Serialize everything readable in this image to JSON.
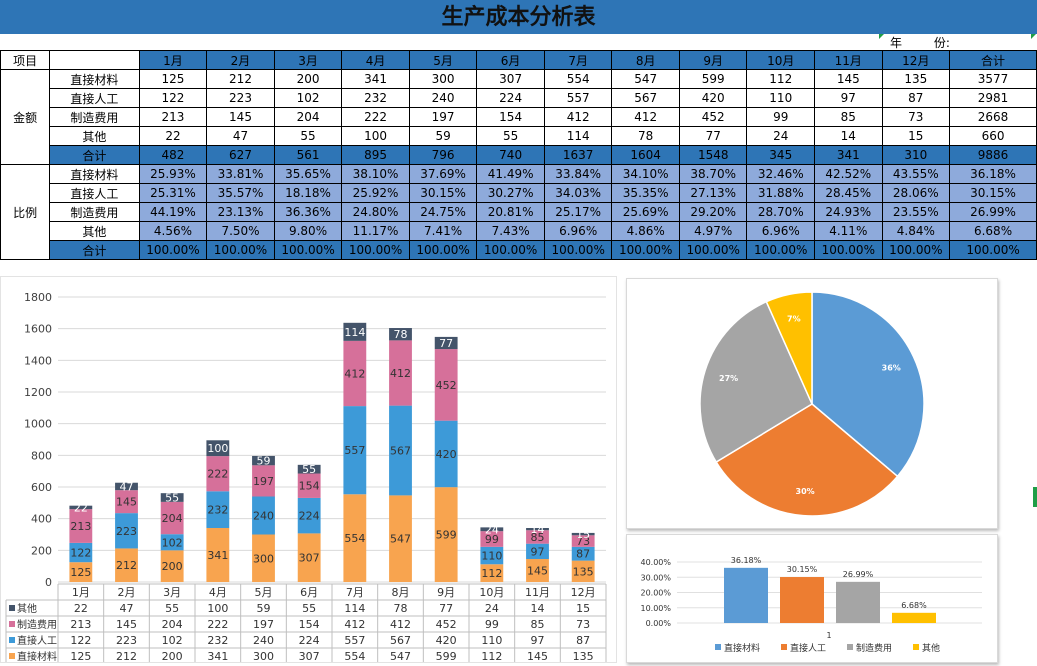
{
  "title": "生产成本分析表",
  "year_label": "年",
  "month_label": "份:",
  "table": {
    "corner": "项目",
    "months": [
      "1月",
      "2月",
      "3月",
      "4月",
      "5月",
      "6月",
      "7月",
      "8月",
      "9月",
      "10月",
      "11月",
      "12月"
    ],
    "total_header": "合计",
    "amount_group": "金额",
    "ratio_group": "比例",
    "amount_rows": [
      {
        "label": "直接材料",
        "values": [
          "125",
          "212",
          "200",
          "341",
          "300",
          "307",
          "554",
          "547",
          "599",
          "112",
          "145",
          "135"
        ],
        "total": "3577"
      },
      {
        "label": "直接人工",
        "values": [
          "122",
          "223",
          "102",
          "232",
          "240",
          "224",
          "557",
          "567",
          "420",
          "110",
          "97",
          "87"
        ],
        "total": "2981"
      },
      {
        "label": "制造费用",
        "values": [
          "213",
          "145",
          "204",
          "222",
          "197",
          "154",
          "412",
          "412",
          "452",
          "99",
          "85",
          "73"
        ],
        "total": "2668"
      },
      {
        "label": "其他",
        "values": [
          "22",
          "47",
          "55",
          "100",
          "59",
          "55",
          "114",
          "78",
          "77",
          "24",
          "14",
          "15"
        ],
        "total": "660"
      }
    ],
    "amount_total": {
      "label": "合计",
      "values": [
        "482",
        "627",
        "561",
        "895",
        "796",
        "740",
        "1637",
        "1604",
        "1548",
        "345",
        "341",
        "310"
      ],
      "total": "9886"
    },
    "ratio_rows": [
      {
        "label": "直接材料",
        "values": [
          "25.93%",
          "33.81%",
          "35.65%",
          "38.10%",
          "37.69%",
          "41.49%",
          "33.84%",
          "34.10%",
          "38.70%",
          "32.46%",
          "42.52%",
          "43.55%"
        ],
        "total": "36.18%"
      },
      {
        "label": "直接人工",
        "values": [
          "25.31%",
          "35.57%",
          "18.18%",
          "25.92%",
          "30.15%",
          "30.27%",
          "34.03%",
          "35.35%",
          "27.13%",
          "31.88%",
          "28.45%",
          "28.06%"
        ],
        "total": "30.15%"
      },
      {
        "label": "制造费用",
        "values": [
          "44.19%",
          "23.13%",
          "36.36%",
          "24.80%",
          "24.75%",
          "20.81%",
          "25.17%",
          "25.69%",
          "29.20%",
          "28.70%",
          "24.93%",
          "23.55%"
        ],
        "total": "26.99%"
      },
      {
        "label": "其他",
        "values": [
          "4.56%",
          "7.50%",
          "9.80%",
          "11.17%",
          "7.41%",
          "7.43%",
          "6.96%",
          "4.86%",
          "4.97%",
          "6.96%",
          "4.11%",
          "4.84%"
        ],
        "total": "6.68%"
      }
    ],
    "ratio_total": {
      "label": "合计",
      "values": [
        "100.00%",
        "100.00%",
        "100.00%",
        "100.00%",
        "100.00%",
        "100.00%",
        "100.00%",
        "100.00%",
        "100.00%",
        "100.00%",
        "100.00%",
        "100.00%"
      ],
      "total": "100.00%"
    }
  },
  "chart_data": [
    {
      "type": "bar",
      "stacked": true,
      "categories": [
        "1月",
        "2月",
        "3月",
        "4月",
        "5月",
        "6月",
        "7月",
        "8月",
        "9月",
        "10月",
        "11月",
        "12月"
      ],
      "ylim": [
        0,
        1800
      ],
      "yticks": [
        "0",
        "200",
        "400",
        "600",
        "800",
        "1000",
        "1200",
        "1400",
        "1600",
        "1800"
      ],
      "series": [
        {
          "name": "直接材料",
          "color": "#f8a44f",
          "values": [
            125,
            212,
            200,
            341,
            300,
            307,
            554,
            547,
            599,
            112,
            145,
            135
          ]
        },
        {
          "name": "直接人工",
          "color": "#3d9ad8",
          "values": [
            122,
            223,
            102,
            232,
            240,
            224,
            557,
            567,
            420,
            110,
            97,
            87
          ]
        },
        {
          "name": "制造费用",
          "color": "#d6709a",
          "values": [
            213,
            145,
            204,
            222,
            197,
            154,
            412,
            412,
            452,
            99,
            85,
            73
          ]
        },
        {
          "name": "其他",
          "color": "#44546a",
          "values": [
            22,
            47,
            55,
            100,
            59,
            55,
            114,
            78,
            77,
            24,
            14,
            15
          ]
        }
      ],
      "legend_table_order": [
        "其他",
        "制造费用",
        "直接人工",
        "直接材料"
      ]
    },
    {
      "type": "pie",
      "labels": [
        "直接材料",
        "直接人工",
        "制造费用",
        "其他"
      ],
      "values": [
        36.18,
        30.15,
        26.99,
        6.68
      ],
      "data_labels": [
        "36%",
        "30%",
        "27%",
        "7%"
      ],
      "colors": [
        "#5b9bd5",
        "#ed7d31",
        "#a5a5a5",
        "#ffc000"
      ]
    },
    {
      "type": "bar",
      "categories": [
        "1"
      ],
      "ylim": [
        0,
        40
      ],
      "yticks": [
        "0.00%",
        "10.00%",
        "20.00%",
        "30.00%",
        "40.00%"
      ],
      "series": [
        {
          "name": "直接材料",
          "color": "#5b9bd5",
          "values": [
            36.18
          ],
          "label": "36.18%"
        },
        {
          "name": "直接人工",
          "color": "#ed7d31",
          "values": [
            30.15
          ],
          "label": "30.15%"
        },
        {
          "name": "制造费用",
          "color": "#a5a5a5",
          "values": [
            26.99
          ],
          "label": "26.99%"
        },
        {
          "name": "其他",
          "color": "#ffc000",
          "values": [
            6.68
          ],
          "label": "6.68%"
        }
      ]
    }
  ]
}
